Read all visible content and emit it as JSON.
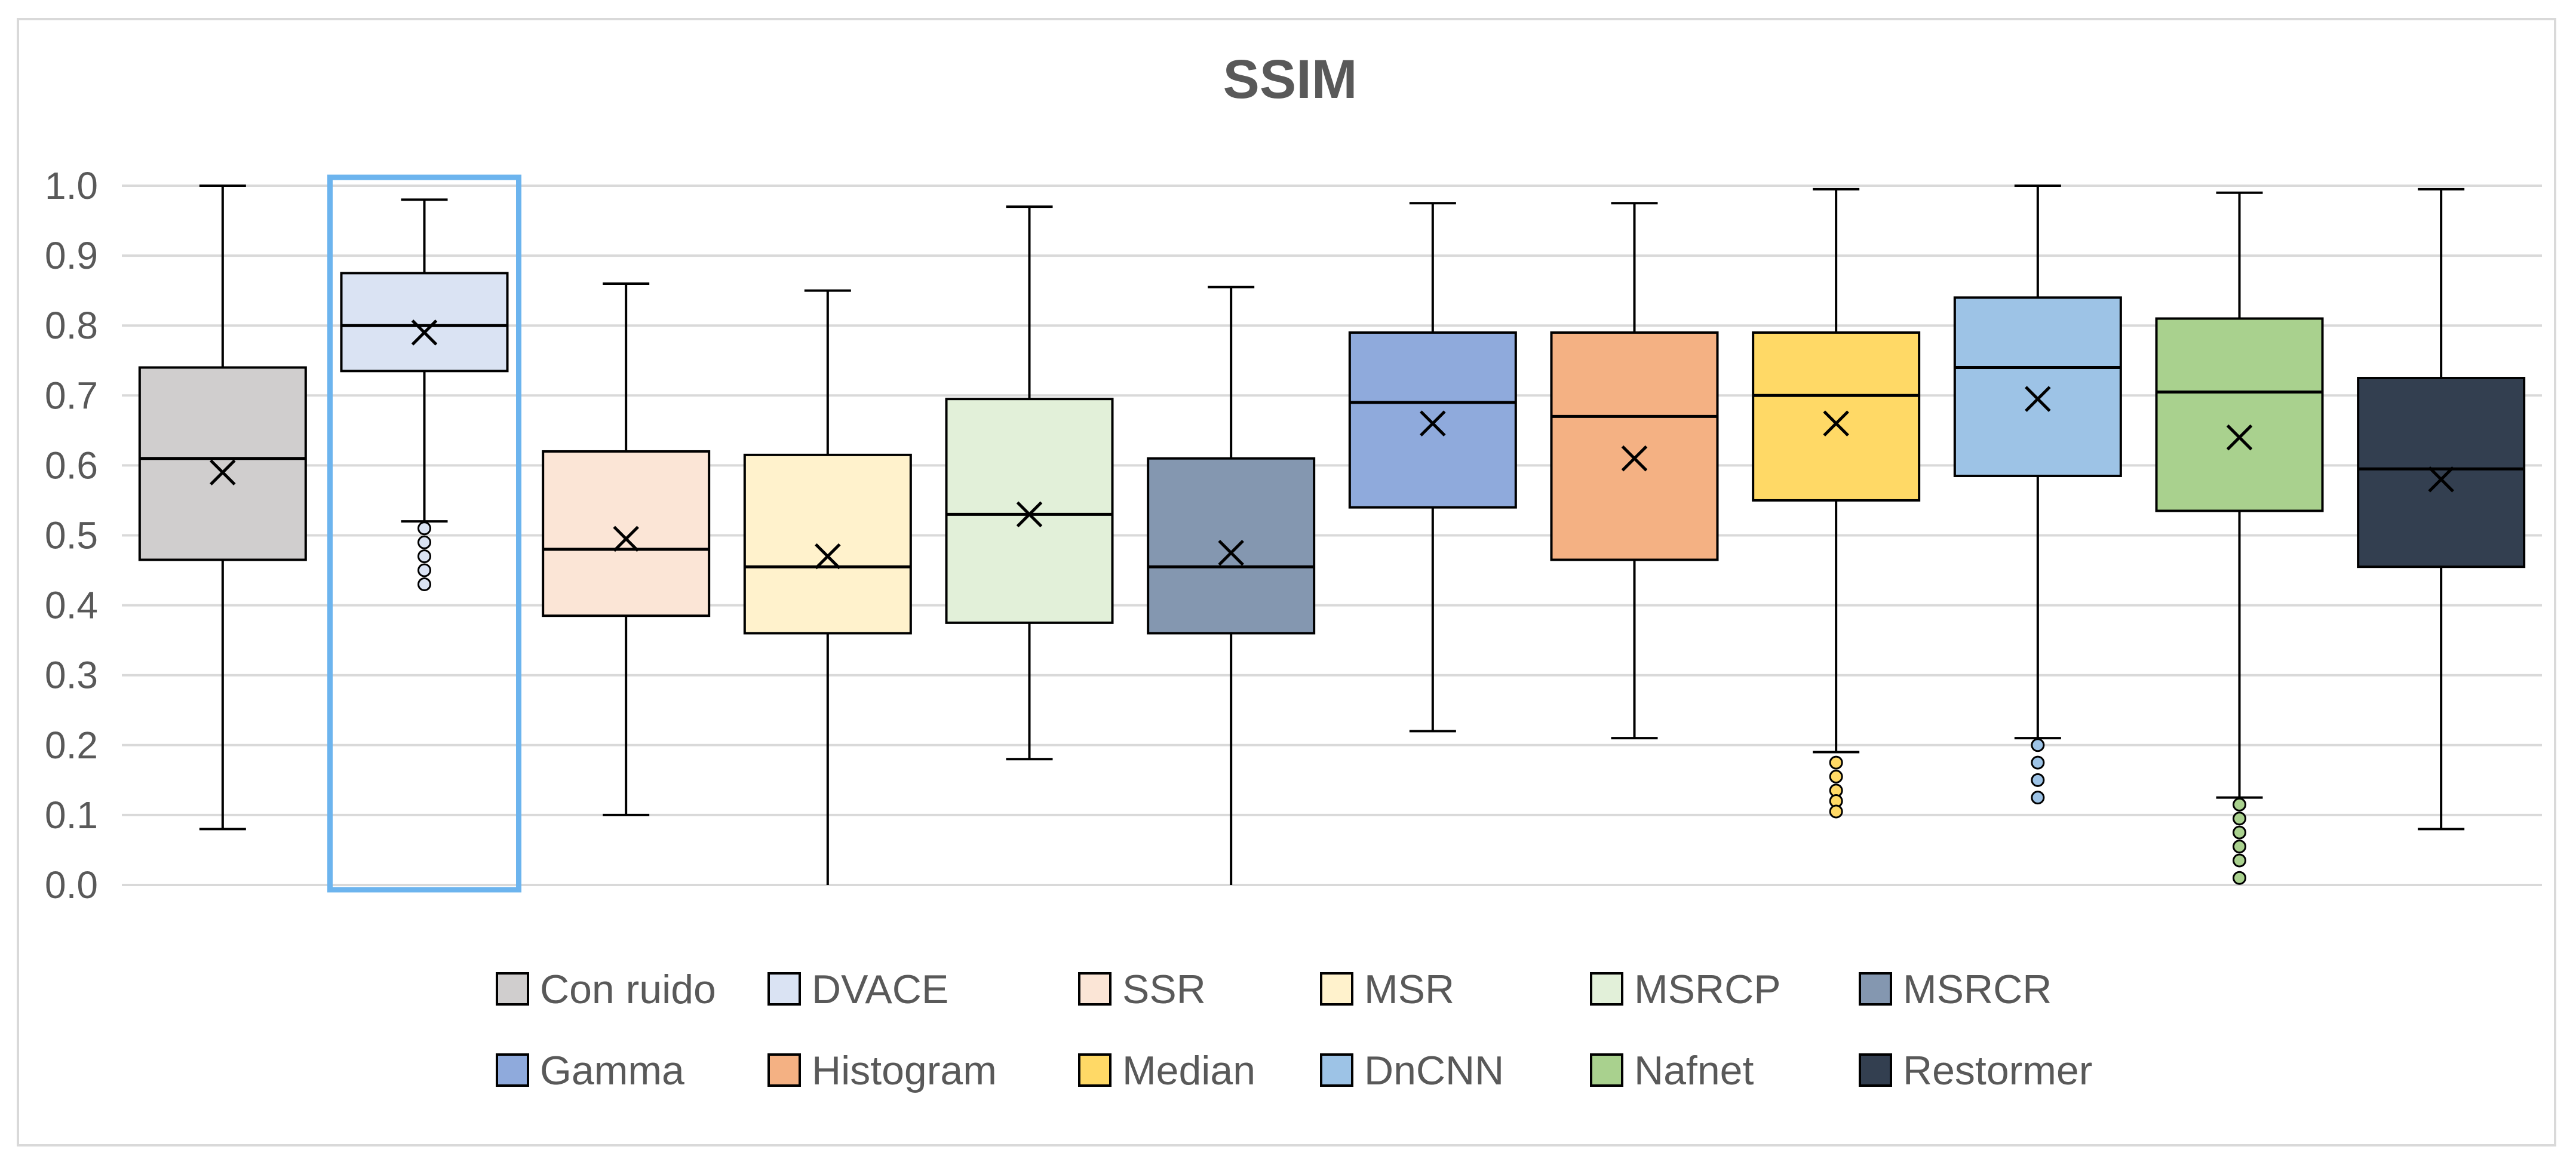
{
  "chart_data": {
    "type": "boxplot",
    "title": "SSIM",
    "xlabel": "",
    "ylabel": "",
    "ylim": [
      0.0,
      1.0
    ],
    "yticks": [
      "0.0",
      "0.1",
      "0.2",
      "0.3",
      "0.4",
      "0.5",
      "0.6",
      "0.7",
      "0.8",
      "0.9",
      "1.0"
    ],
    "grid": true,
    "legend_position": "bottom",
    "highlighted_series": "DVACE",
    "series": [
      {
        "name": "Con ruido",
        "color": "#d0cece",
        "min": 0.08,
        "q1": 0.465,
        "median": 0.61,
        "q3": 0.74,
        "max": 1.0,
        "mean": 0.59,
        "outliers": []
      },
      {
        "name": "DVACE",
        "color": "#dae3f3",
        "min": 0.52,
        "q1": 0.735,
        "median": 0.8,
        "q3": 0.875,
        "max": 0.98,
        "mean": 0.79,
        "outliers": [
          0.51,
          0.49,
          0.47,
          0.45,
          0.43
        ]
      },
      {
        "name": "SSR",
        "color": "#fbe5d6",
        "min": 0.1,
        "q1": 0.385,
        "median": 0.48,
        "q3": 0.62,
        "max": 0.86,
        "mean": 0.495,
        "outliers": []
      },
      {
        "name": "MSR",
        "color": "#fff2cc",
        "min": 0.0,
        "q1": 0.36,
        "median": 0.455,
        "q3": 0.615,
        "max": 0.85,
        "mean": 0.47,
        "outliers": []
      },
      {
        "name": "MSRCP",
        "color": "#e2f0d9",
        "min": 0.18,
        "q1": 0.375,
        "median": 0.53,
        "q3": 0.695,
        "max": 0.97,
        "mean": 0.53,
        "outliers": []
      },
      {
        "name": "MSRCR",
        "color": "#8497b0",
        "min": 0.0,
        "q1": 0.36,
        "median": 0.455,
        "q3": 0.61,
        "max": 0.855,
        "mean": 0.475,
        "outliers": []
      },
      {
        "name": "Gamma",
        "color": "#8faadc",
        "min": 0.22,
        "q1": 0.54,
        "median": 0.69,
        "q3": 0.79,
        "max": 0.975,
        "mean": 0.66,
        "outliers": []
      },
      {
        "name": "Histogram",
        "color": "#f4b183",
        "min": 0.21,
        "q1": 0.465,
        "median": 0.67,
        "q3": 0.79,
        "max": 0.975,
        "mean": 0.61,
        "outliers": []
      },
      {
        "name": "Median",
        "color": "#ffd966",
        "min": 0.19,
        "q1": 0.55,
        "median": 0.7,
        "q3": 0.79,
        "max": 0.995,
        "mean": 0.66,
        "outliers": [
          0.175,
          0.155,
          0.135,
          0.12,
          0.105
        ]
      },
      {
        "name": "DnCNN",
        "color": "#9dc3e6",
        "min": 0.21,
        "q1": 0.585,
        "median": 0.74,
        "q3": 0.84,
        "max": 1.0,
        "mean": 0.695,
        "outliers": [
          0.2,
          0.175,
          0.15,
          0.125
        ]
      },
      {
        "name": "Nafnet",
        "color": "#a9d18e",
        "min": 0.125,
        "q1": 0.535,
        "median": 0.705,
        "q3": 0.81,
        "max": 0.99,
        "mean": 0.64,
        "outliers": [
          0.115,
          0.095,
          0.075,
          0.055,
          0.035,
          0.01
        ]
      },
      {
        "name": "Restormer",
        "color": "#333f50",
        "min": 0.08,
        "q1": 0.455,
        "median": 0.595,
        "q3": 0.725,
        "max": 0.995,
        "mean": 0.58,
        "outliers": []
      }
    ]
  },
  "colors": {
    "grid": "#d9d9d9",
    "axis_text": "#595959",
    "box_stroke": "#000000",
    "highlight": "#6cb4ee",
    "background": "#ffffff"
  }
}
